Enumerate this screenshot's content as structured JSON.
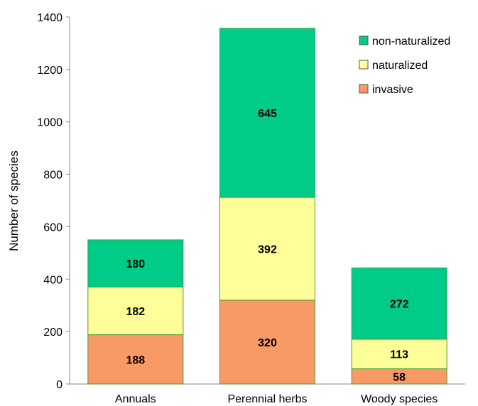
{
  "chart_data": {
    "type": "bar",
    "stacked": true,
    "categories": [
      "Annuals",
      "Perennial herbs",
      "Woody species"
    ],
    "series": [
      {
        "name": "invasive",
        "values": [
          188,
          320,
          58
        ],
        "color": "#f79a66"
      },
      {
        "name": "naturalized",
        "values": [
          182,
          392,
          113
        ],
        "color": "#ffff99"
      },
      {
        "name": "non-naturalized",
        "values": [
          180,
          645,
          272
        ],
        "color": "#00cc88"
      }
    ],
    "ylabel": "Number of species",
    "ylim": [
      0,
      1400
    ],
    "yticks": [
      "0",
      "200",
      "400",
      "600",
      "800",
      "1000",
      "1200",
      "1400"
    ],
    "legend": {
      "placement": "top-right",
      "order": [
        "non-naturalized",
        "naturalized",
        "invasive"
      ]
    },
    "grid": false
  }
}
